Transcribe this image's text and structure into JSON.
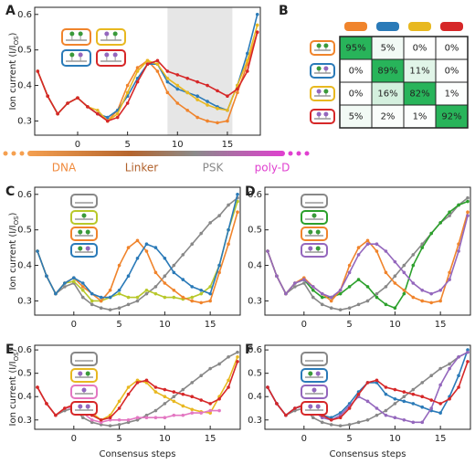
{
  "chart_data": [
    {
      "type": "line",
      "panel": "A",
      "ylabel": [
        "Ion current (I/I",
        "OS",
        ")"
      ],
      "x": [
        -4,
        -3,
        -2,
        -1,
        0,
        1,
        2,
        3,
        4,
        5,
        6,
        7,
        8,
        9,
        10,
        11,
        12,
        13,
        14,
        15,
        16,
        17,
        18
      ],
      "xlim": [
        -4.3,
        18.3
      ],
      "xticks": [
        0,
        5,
        10,
        15
      ],
      "ylim": [
        0.26,
        0.62
      ],
      "yticks": [
        0.3,
        0.4,
        0.5,
        0.6
      ],
      "highlight": [
        9,
        15.5
      ],
      "series": [
        {
          "color": "#f0842c",
          "values": [
            0.44,
            0.37,
            0.32,
            0.35,
            0.365,
            0.34,
            0.32,
            0.3,
            0.33,
            0.4,
            0.45,
            0.47,
            0.44,
            0.38,
            0.35,
            0.33,
            0.31,
            0.3,
            0.295,
            0.3,
            0.38,
            0.46,
            0.55
          ]
        },
        {
          "color": "#2a7ab8",
          "values": [
            0.44,
            0.37,
            0.32,
            0.35,
            0.365,
            0.34,
            0.32,
            0.31,
            0.33,
            0.37,
            0.42,
            0.46,
            0.46,
            0.41,
            0.39,
            0.38,
            0.37,
            0.355,
            0.34,
            0.33,
            0.4,
            0.49,
            0.6
          ]
        },
        {
          "color": "#e8b820",
          "values": [
            0.44,
            0.37,
            0.32,
            0.35,
            0.365,
            0.34,
            0.33,
            0.3,
            0.32,
            0.38,
            0.44,
            0.47,
            0.46,
            0.42,
            0.4,
            0.38,
            0.36,
            0.345,
            0.335,
            0.33,
            0.4,
            0.47,
            0.57
          ]
        },
        {
          "color": "#d62728",
          "values": [
            0.44,
            0.37,
            0.32,
            0.35,
            0.365,
            0.34,
            0.32,
            0.3,
            0.31,
            0.35,
            0.41,
            0.46,
            0.47,
            0.44,
            0.43,
            0.42,
            0.41,
            0.4,
            0.385,
            0.37,
            0.39,
            0.44,
            0.55
          ]
        }
      ]
    },
    {
      "type": "heatmap",
      "panel": "B",
      "colors": [
        "#f0842c",
        "#2a7ab8",
        "#e8b820",
        "#d62728"
      ],
      "values": [
        [
          95,
          5,
          0,
          0
        ],
        [
          0,
          89,
          11,
          0
        ],
        [
          0,
          16,
          82,
          1
        ],
        [
          5,
          2,
          1,
          92
        ]
      ],
      "value_labels": [
        [
          "95%",
          "5%",
          "0%",
          "0%"
        ],
        [
          "0%",
          "89%",
          "11%",
          "0%"
        ],
        [
          "0%",
          "16%",
          "82%",
          "1%"
        ],
        [
          "5%",
          "2%",
          "1%",
          "92%"
        ]
      ]
    },
    {
      "type": "line",
      "panel": "C",
      "ylabel": [
        "Ion current (I/I",
        "OS",
        ")"
      ],
      "x": [
        -4,
        -3,
        -2,
        -1,
        0,
        1,
        2,
        3,
        4,
        5,
        6,
        7,
        8,
        9,
        10,
        11,
        12,
        13,
        14,
        15,
        16,
        17,
        18
      ],
      "xlim": [
        -4.3,
        18.3
      ],
      "xticks": [
        0,
        5,
        10,
        15
      ],
      "ylim": [
        0.26,
        0.62
      ],
      "yticks": [
        0.3,
        0.4,
        0.5,
        0.6
      ],
      "series": [
        {
          "color": "#888888",
          "values": [
            0.44,
            0.37,
            0.32,
            0.34,
            0.35,
            0.31,
            0.29,
            0.28,
            0.275,
            0.28,
            0.29,
            0.3,
            0.32,
            0.34,
            0.37,
            0.4,
            0.43,
            0.46,
            0.49,
            0.52,
            0.54,
            0.57,
            0.59
          ]
        },
        {
          "color": "#b8c82a",
          "values": [
            0.44,
            0.37,
            0.32,
            0.35,
            0.355,
            0.33,
            0.3,
            0.3,
            0.31,
            0.32,
            0.31,
            0.31,
            0.33,
            0.32,
            0.31,
            0.31,
            0.305,
            0.31,
            0.32,
            0.34,
            0.4,
            0.5,
            0.58
          ]
        },
        {
          "color": "#f0842c",
          "values": [
            0.44,
            0.37,
            0.32,
            0.35,
            0.365,
            0.34,
            0.32,
            0.3,
            0.33,
            0.4,
            0.45,
            0.47,
            0.44,
            0.38,
            0.35,
            0.33,
            0.31,
            0.3,
            0.295,
            0.3,
            0.38,
            0.46,
            0.55
          ]
        },
        {
          "color": "#2a7ab8",
          "values": [
            0.44,
            0.37,
            0.32,
            0.35,
            0.365,
            0.35,
            0.32,
            0.31,
            0.31,
            0.33,
            0.37,
            0.42,
            0.46,
            0.45,
            0.42,
            0.38,
            0.36,
            0.34,
            0.33,
            0.32,
            0.4,
            0.5,
            0.6
          ]
        }
      ]
    },
    {
      "type": "line",
      "panel": "D",
      "x": [
        -4,
        -3,
        -2,
        -1,
        0,
        1,
        2,
        3,
        4,
        5,
        6,
        7,
        8,
        9,
        10,
        11,
        12,
        13,
        14,
        15,
        16,
        17,
        18
      ],
      "xlim": [
        -4.3,
        18.3
      ],
      "xticks": [
        0,
        5,
        10,
        15
      ],
      "ylim": [
        0.26,
        0.62
      ],
      "yticks": [
        0.3,
        0.4,
        0.5,
        0.6
      ],
      "series": [
        {
          "color": "#888888",
          "values": [
            0.44,
            0.37,
            0.32,
            0.34,
            0.35,
            0.31,
            0.29,
            0.28,
            0.275,
            0.28,
            0.29,
            0.3,
            0.32,
            0.34,
            0.37,
            0.4,
            0.43,
            0.46,
            0.49,
            0.52,
            0.54,
            0.57,
            0.59
          ]
        },
        {
          "color": "#2ca02c",
          "values": [
            0.44,
            0.37,
            0.32,
            0.35,
            0.36,
            0.33,
            0.31,
            0.31,
            0.32,
            0.34,
            0.36,
            0.34,
            0.31,
            0.29,
            0.28,
            0.32,
            0.4,
            0.45,
            0.49,
            0.52,
            0.55,
            0.57,
            0.58
          ]
        },
        {
          "color": "#f0842c",
          "values": [
            0.44,
            0.37,
            0.32,
            0.35,
            0.365,
            0.34,
            0.32,
            0.3,
            0.33,
            0.4,
            0.45,
            0.47,
            0.44,
            0.38,
            0.35,
            0.33,
            0.31,
            0.3,
            0.295,
            0.3,
            0.38,
            0.46,
            0.55
          ]
        },
        {
          "color": "#9467bd",
          "values": [
            0.44,
            0.37,
            0.32,
            0.35,
            0.36,
            0.34,
            0.32,
            0.31,
            0.33,
            0.38,
            0.43,
            0.46,
            0.46,
            0.44,
            0.41,
            0.38,
            0.35,
            0.33,
            0.32,
            0.33,
            0.36,
            0.44,
            0.54
          ]
        }
      ]
    },
    {
      "type": "line",
      "panel": "E",
      "ylabel": [
        "Ion current (I/I",
        "OS",
        ")"
      ],
      "xlabel": "Consensus steps",
      "x": [
        -4,
        -3,
        -2,
        -1,
        0,
        1,
        2,
        3,
        4,
        5,
        6,
        7,
        8,
        9,
        10,
        11,
        12,
        13,
        14,
        15,
        16,
        17,
        18
      ],
      "xlim": [
        -4.3,
        18.3
      ],
      "xticks": [
        0,
        5,
        10,
        15
      ],
      "ylim": [
        0.26,
        0.62
      ],
      "yticks": [
        0.3,
        0.4,
        0.5,
        0.6
      ],
      "series": [
        {
          "color": "#888888",
          "values": [
            0.44,
            0.37,
            0.32,
            0.34,
            0.35,
            0.31,
            0.29,
            0.28,
            0.275,
            0.28,
            0.29,
            0.3,
            0.32,
            0.34,
            0.37,
            0.4,
            0.43,
            0.46,
            0.49,
            0.52,
            0.54,
            0.57,
            0.59
          ]
        },
        {
          "color": "#e8b820",
          "values": [
            0.44,
            0.37,
            0.32,
            0.35,
            0.365,
            0.34,
            0.33,
            0.3,
            0.32,
            0.38,
            0.44,
            0.47,
            0.46,
            0.42,
            0.4,
            0.38,
            0.36,
            0.345,
            0.335,
            0.33,
            0.4,
            0.47,
            0.57
          ]
        },
        {
          "color": "#e377c2",
          "values": [
            0.44,
            0.37,
            0.32,
            0.35,
            0.355,
            0.33,
            0.3,
            0.29,
            0.3,
            0.3,
            0.3,
            0.31,
            0.31,
            0.31,
            0.31,
            0.32,
            0.32,
            0.33,
            0.33,
            0.34,
            0.34,
            null,
            null
          ]
        },
        {
          "color": "#d62728",
          "values": [
            0.44,
            0.37,
            0.32,
            0.35,
            0.365,
            0.34,
            0.32,
            0.3,
            0.31,
            0.35,
            0.41,
            0.46,
            0.47,
            0.44,
            0.43,
            0.42,
            0.41,
            0.4,
            0.385,
            0.37,
            0.39,
            0.44,
            0.55
          ]
        }
      ]
    },
    {
      "type": "line",
      "panel": "F",
      "xlabel": "Consensus steps",
      "x": [
        -4,
        -3,
        -2,
        -1,
        0,
        1,
        2,
        3,
        4,
        5,
        6,
        7,
        8,
        9,
        10,
        11,
        12,
        13,
        14,
        15,
        16,
        17,
        18
      ],
      "xlim": [
        -4.3,
        18.3
      ],
      "xticks": [
        0,
        5,
        10,
        15
      ],
      "ylim": [
        0.26,
        0.62
      ],
      "yticks": [
        0.3,
        0.4,
        0.5,
        0.6
      ],
      "series": [
        {
          "color": "#888888",
          "values": [
            0.44,
            0.37,
            0.32,
            0.34,
            0.35,
            0.31,
            0.29,
            0.28,
            0.275,
            0.28,
            0.29,
            0.3,
            0.32,
            0.34,
            0.37,
            0.4,
            0.43,
            0.46,
            0.49,
            0.52,
            0.54,
            0.57,
            0.59
          ]
        },
        {
          "color": "#2a7ab8",
          "values": [
            0.44,
            0.37,
            0.32,
            0.35,
            0.365,
            0.34,
            0.32,
            0.31,
            0.33,
            0.37,
            0.42,
            0.46,
            0.46,
            0.41,
            0.39,
            0.38,
            0.37,
            0.355,
            0.34,
            0.33,
            0.4,
            0.49,
            0.6
          ]
        },
        {
          "color": "#9467bd",
          "values": [
            0.44,
            0.37,
            0.32,
            0.35,
            0.36,
            0.34,
            0.31,
            0.3,
            0.32,
            0.36,
            0.4,
            0.38,
            0.35,
            0.32,
            0.31,
            0.3,
            0.29,
            0.29,
            0.35,
            0.45,
            0.52,
            0.57,
            0.59
          ]
        },
        {
          "color": "#d62728",
          "values": [
            0.44,
            0.37,
            0.32,
            0.35,
            0.365,
            0.34,
            0.32,
            0.3,
            0.31,
            0.35,
            0.41,
            0.46,
            0.47,
            0.44,
            0.43,
            0.42,
            0.41,
            0.4,
            0.385,
            0.37,
            0.39,
            0.44,
            0.55
          ]
        }
      ]
    }
  ],
  "sequence_bar": {
    "labels": [
      "DNA",
      "Linker",
      "PSK",
      "poly-D"
    ]
  }
}
